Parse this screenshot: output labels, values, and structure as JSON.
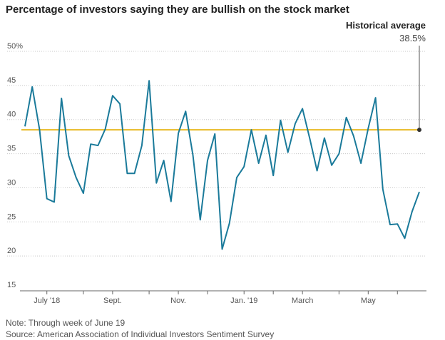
{
  "header": {
    "title": "Percentage of investors saying they are bullish on the stock market"
  },
  "annotation": {
    "label": "Historical average",
    "value_text": "38.5%"
  },
  "footer": {
    "note": "Note: Through week of June 19",
    "source": "Source: American Association of Individual Investors Sentiment Survey"
  },
  "colors": {
    "line": "#1a7a9a",
    "average": "#e8b923",
    "grid": "#c8c8c8",
    "marker": "#333333"
  },
  "chart_data": {
    "type": "line",
    "title": "Percentage of investors saying they are bullish on the stock market",
    "xlabel": "",
    "ylabel": "",
    "ylim": [
      15,
      50
    ],
    "yticks": [
      {
        "value": 15,
        "label": "15"
      },
      {
        "value": 20,
        "label": "20"
      },
      {
        "value": 25,
        "label": "25"
      },
      {
        "value": 30,
        "label": "30"
      },
      {
        "value": 35,
        "label": "35"
      },
      {
        "value": 40,
        "label": "40"
      },
      {
        "value": 45,
        "label": "45"
      },
      {
        "value": 50,
        "label": "50%"
      }
    ],
    "xticks": [
      {
        "week": 3,
        "label": "July '18"
      },
      {
        "week": 12,
        "label": "Sept."
      },
      {
        "week": 21,
        "label": "Nov."
      },
      {
        "week": 30,
        "label": "Jan. '19"
      },
      {
        "week": 38,
        "label": "March"
      },
      {
        "week": 47,
        "label": "May"
      }
    ],
    "minor_ticks": [
      8,
      17,
      25,
      34,
      43,
      51
    ],
    "grid": true,
    "average": 38.5,
    "series": [
      {
        "values": [
          39.0,
          44.8,
          38.5,
          28.4,
          27.9,
          43.1,
          34.7,
          31.5,
          29.2,
          36.4,
          36.2,
          38.6,
          43.5,
          42.3,
          32.1,
          32.1,
          36.2,
          45.7,
          30.7,
          34.0,
          28.0,
          38.0,
          41.2,
          34.8,
          25.3,
          34.0,
          37.9,
          21.0,
          24.8,
          31.5,
          33.1,
          38.5,
          33.6,
          37.7,
          31.8,
          39.9,
          35.2,
          39.4,
          41.6,
          37.2,
          32.5,
          37.3,
          33.3,
          35.0,
          40.3,
          37.6,
          33.6,
          38.7,
          43.2,
          29.8,
          24.6,
          24.7,
          22.6,
          26.5,
          29.4
        ]
      }
    ]
  }
}
